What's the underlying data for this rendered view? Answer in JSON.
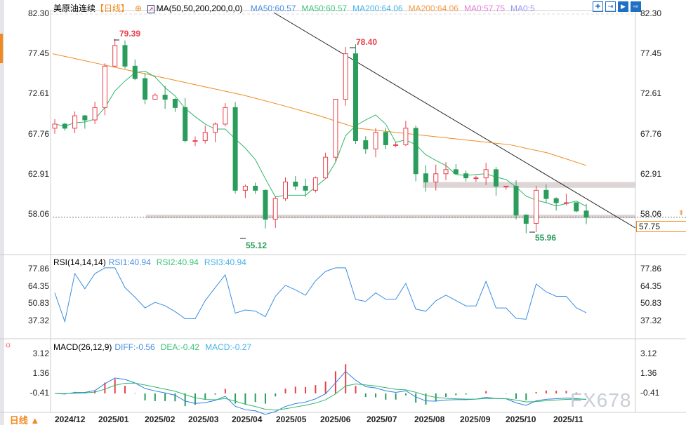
{
  "header": {
    "symbol": "美原油连续",
    "period": "【日线】",
    "ma_title": "MA(50,50,200,200,0,0)",
    "ma_values": [
      {
        "label": "MA50:60.57",
        "color": "#4a90e2"
      },
      {
        "label": "MA50:60.57",
        "color": "#3cc47c"
      },
      {
        "label": "MA200:64.06",
        "color": "#4ab3e8"
      },
      {
        "label": "MA200:64.06",
        "color": "#f39a4a"
      },
      {
        "label": "MA0:57.75",
        "color": "#e87ad8"
      },
      {
        "label": "MA0:5",
        "color": "#9a9af0"
      }
    ]
  },
  "toolbar": [
    "crosshair-icon",
    "fit-icon",
    "play-icon",
    "exit-icon"
  ],
  "rsi": {
    "title": "RSI(14,14,14)",
    "values": [
      {
        "label": "RSI1:40.94",
        "color": "#4a90e2"
      },
      {
        "label": "RSI2:40.94",
        "color": "#3cc47c"
      },
      {
        "label": "RSI3:40.94",
        "color": "#4ab3e8"
      }
    ]
  },
  "macd": {
    "title": "MACD(26,12,9)",
    "values": [
      {
        "label": "DIFF:-0.56",
        "color": "#4a90e2"
      },
      {
        "label": "DEA:-0.42",
        "color": "#3cc47c"
      },
      {
        "label": "MACD:-0.27",
        "color": "#4ab3e8"
      }
    ]
  },
  "bottom_left": "日线 ▲",
  "current_price": "57.75",
  "watermark": "FX678",
  "chart_data": [
    {
      "type": "candlestick",
      "title": "美原油连续",
      "yticks": [
        "82.30",
        "77.45",
        "72.61",
        "67.76",
        "62.91",
        "58.06"
      ],
      "ylim": [
        53.3,
        82.3
      ],
      "xticks": [
        "2024/12",
        "2025/01",
        "2025/02",
        "2025/03",
        "2025/04",
        "2025/05",
        "2025/06",
        "2025/07",
        "2025/08",
        "2025/09",
        "2025/10",
        "2025/11"
      ],
      "closes": [
        69,
        68.5,
        70,
        69.5,
        71,
        76,
        78.5,
        76,
        74.5,
        72,
        72.5,
        72,
        71,
        67,
        67,
        68,
        69,
        71,
        61,
        61.5,
        61,
        57.5,
        60,
        62,
        61.5,
        61,
        62.5,
        65,
        72,
        77.5,
        67,
        66,
        68,
        66.5,
        66.5,
        68.5,
        63,
        62,
        63,
        63.5,
        63,
        62.5,
        62.5,
        63.5,
        61.5,
        61.5,
        58,
        57,
        61,
        60,
        59.5,
        59.5,
        58.5,
        57.75
      ],
      "ma200": [
        77.5,
        76.5,
        75.5,
        74.5,
        73.5,
        72.5,
        71.3,
        70,
        68.5,
        68,
        67.5,
        67,
        66.5,
        65.5,
        64
      ],
      "annotations": [
        {
          "label": "79.39",
          "color": "#e8404a"
        },
        {
          "label": "78.40",
          "color": "#e8404a"
        },
        {
          "label": "55.12",
          "color": "#2a9d5c"
        },
        {
          "label": "55.96",
          "color": "#2a9d5c"
        }
      ],
      "support_band": [
        61.3,
        62.0
      ],
      "last_price": 57.75
    },
    {
      "type": "line",
      "title": "RSI(14,14,14)",
      "yticks": [
        "77.86",
        "64.35",
        "50.83",
        "37.32"
      ]
    },
    {
      "type": "bar",
      "title": "MACD(26,12,9)",
      "yticks": [
        "3.12",
        "1.36",
        "-0.41"
      ]
    }
  ],
  "colors": {
    "up": "#e8404a",
    "down": "#2a9d5c",
    "accent": "#f08a20"
  }
}
